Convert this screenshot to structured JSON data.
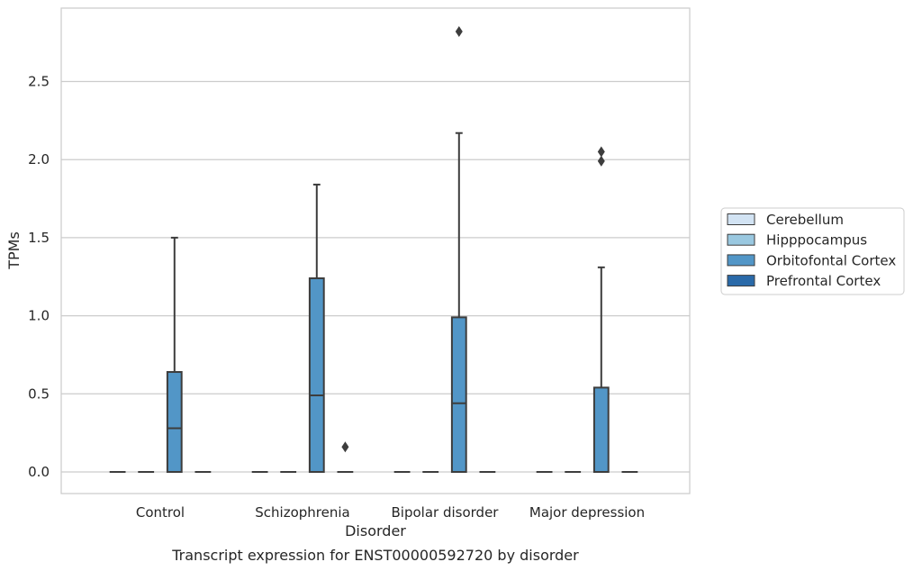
{
  "chart_data": {
    "type": "box",
    "xlabel": "Disorder",
    "ylabel": "TPMs",
    "caption": "Transcript expression for ENST00000592720 by disorder",
    "ylim": [
      -0.14,
      2.97
    ],
    "yticks": [
      "0.0",
      "0.5",
      "1.0",
      "1.5",
      "2.0",
      "2.5"
    ],
    "ytick_values": [
      0.0,
      0.5,
      1.0,
      1.5,
      2.0,
      2.5
    ],
    "grid": "horizontal",
    "legend_position": "right",
    "categories": [
      "Control",
      "Schizophrenia",
      "Bipolar disorder",
      "Major depression"
    ],
    "series": [
      {
        "name": "Cerebellum",
        "color": "#d2e3f3",
        "boxes": [
          {
            "min": 0,
            "q1": 0,
            "median": 0,
            "q3": 0,
            "max": 0,
            "outliers": []
          },
          {
            "min": 0,
            "q1": 0,
            "median": 0,
            "q3": 0,
            "max": 0,
            "outliers": []
          },
          {
            "min": 0,
            "q1": 0,
            "median": 0,
            "q3": 0,
            "max": 0,
            "outliers": []
          },
          {
            "min": 0,
            "q1": 0,
            "median": 0,
            "q3": 0,
            "max": 0,
            "outliers": []
          }
        ]
      },
      {
        "name": "Hipppocampus",
        "color": "#9ac8e0",
        "boxes": [
          {
            "min": 0,
            "q1": 0,
            "median": 0,
            "q3": 0,
            "max": 0,
            "outliers": []
          },
          {
            "min": 0,
            "q1": 0,
            "median": 0,
            "q3": 0,
            "max": 0,
            "outliers": []
          },
          {
            "min": 0,
            "q1": 0,
            "median": 0,
            "q3": 0,
            "max": 0,
            "outliers": []
          },
          {
            "min": 0,
            "q1": 0,
            "median": 0,
            "q3": 0,
            "max": 0,
            "outliers": []
          }
        ]
      },
      {
        "name": "Orbitofontal Cortex",
        "color": "#5296c7",
        "boxes": [
          {
            "min": 0,
            "q1": 0,
            "median": 0.28,
            "q3": 0.64,
            "max": 1.5,
            "outliers": []
          },
          {
            "min": 0,
            "q1": 0,
            "median": 0.49,
            "q3": 1.24,
            "max": 1.84,
            "outliers": []
          },
          {
            "min": 0,
            "q1": 0,
            "median": 0.44,
            "q3": 0.99,
            "max": 2.17,
            "outliers": [
              2.82
            ]
          },
          {
            "min": 0,
            "q1": 0,
            "median": 0,
            "q3": 0.54,
            "max": 1.31,
            "outliers": [
              1.99,
              2.05
            ]
          }
        ]
      },
      {
        "name": "Prefrontal Cortex",
        "color": "#2a6aa9",
        "boxes": [
          {
            "min": 0,
            "q1": 0,
            "median": 0,
            "q3": 0,
            "max": 0,
            "outliers": []
          },
          {
            "min": 0,
            "q1": 0,
            "median": 0,
            "q3": 0,
            "max": 0,
            "outliers": [
              0.16
            ]
          },
          {
            "min": 0,
            "q1": 0,
            "median": 0,
            "q3": 0,
            "max": 0,
            "outliers": []
          },
          {
            "min": 0,
            "q1": 0,
            "median": 0,
            "q3": 0,
            "max": 0,
            "outliers": []
          }
        ]
      }
    ]
  }
}
